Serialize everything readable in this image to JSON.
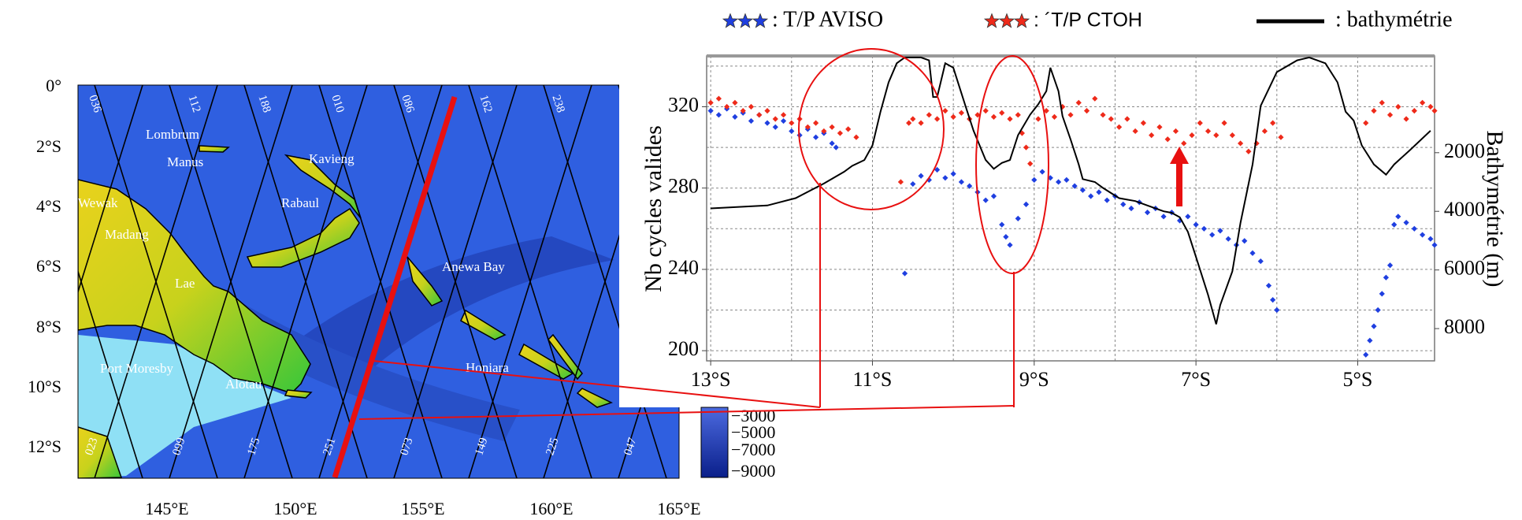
{
  "chart_data": {
    "type": "scatter",
    "xlabel": null,
    "ylabel": "Nb cycles valides",
    "y2label": "Bathymétrie (m)",
    "xlim": [
      -13.05,
      -4.05
    ],
    "xticks": [
      {
        "value": -13,
        "label": "13°S"
      },
      {
        "value": -11,
        "label": "11°S"
      },
      {
        "value": -9,
        "label": "9°S"
      },
      {
        "value": -7,
        "label": "7°S"
      },
      {
        "value": -5,
        "label": "5°S"
      }
    ],
    "x_minor_grid": [
      -12,
      -10,
      -8,
      -6
    ],
    "ylim": [
      195,
      345
    ],
    "yticks": [
      200,
      240,
      280,
      320
    ],
    "y_minor_grid": [
      220,
      260,
      300,
      340
    ],
    "y2lim": [
      9100,
      -1300
    ],
    "y2ticks": [
      2000,
      4000,
      6000,
      8000
    ],
    "grid": true,
    "series": [
      {
        "name": ": T/P AVISO",
        "color": "#1f3fe0",
        "x": [
          -13.0,
          -12.9,
          -12.8,
          -12.7,
          -12.6,
          -12.5,
          -12.4,
          -12.3,
          -12.2,
          -12.1,
          -12.0,
          -11.9,
          -11.8,
          -11.7,
          -11.6,
          -11.5,
          -11.45,
          -10.6,
          -10.5,
          -10.4,
          -10.3,
          -10.2,
          -10.1,
          -10.0,
          -9.9,
          -9.8,
          -9.7,
          -9.6,
          -9.5,
          -9.4,
          -9.35,
          -9.3,
          -9.2,
          -9.1,
          -9.0,
          -8.9,
          -8.8,
          -8.7,
          -8.6,
          -8.5,
          -8.4,
          -8.3,
          -8.2,
          -8.1,
          -8.0,
          -7.9,
          -7.8,
          -7.7,
          -7.6,
          -7.5,
          -7.4,
          -7.3,
          -7.2,
          -7.1,
          -7.0,
          -6.9,
          -6.8,
          -6.7,
          -6.6,
          -6.5,
          -6.4,
          -6.3,
          -6.2,
          -6.1,
          -6.05,
          -6.0,
          -4.9,
          -4.85,
          -4.8,
          -4.75,
          -4.7,
          -4.65,
          -4.6,
          -4.55,
          -4.5,
          -4.4,
          -4.3,
          -4.2,
          -4.1,
          -4.05
        ],
        "values": [
          318,
          316,
          319,
          315,
          317,
          313,
          316,
          312,
          310,
          313,
          308,
          306,
          309,
          305,
          307,
          302,
          300,
          238,
          282,
          286,
          284,
          289,
          285,
          287,
          283,
          281,
          278,
          274,
          276,
          262,
          256,
          252,
          265,
          272,
          284,
          288,
          285,
          283,
          284,
          281,
          279,
          276,
          278,
          274,
          276,
          272,
          270,
          273,
          268,
          270,
          266,
          268,
          264,
          266,
          262,
          260,
          257,
          259,
          255,
          252,
          254,
          248,
          244,
          232,
          225,
          220,
          198,
          205,
          212,
          220,
          228,
          236,
          242,
          262,
          266,
          263,
          260,
          257,
          255,
          252
        ]
      },
      {
        "name": ": ´T/P CTOH",
        "color": "#ee2a1a",
        "x": [
          -13.0,
          -12.9,
          -12.8,
          -12.7,
          -12.6,
          -12.5,
          -12.4,
          -12.3,
          -12.2,
          -12.1,
          -12.0,
          -11.9,
          -11.8,
          -11.7,
          -11.6,
          -11.5,
          -11.4,
          -11.3,
          -11.2,
          -10.65,
          -10.55,
          -10.5,
          -10.4,
          -10.3,
          -10.2,
          -10.1,
          -10.0,
          -9.9,
          -9.8,
          -9.7,
          -9.6,
          -9.5,
          -9.4,
          -9.3,
          -9.2,
          -9.15,
          -9.1,
          -9.05,
          -8.95,
          -8.85,
          -8.75,
          -8.65,
          -8.55,
          -8.45,
          -8.35,
          -8.25,
          -8.15,
          -8.05,
          -7.95,
          -7.85,
          -7.75,
          -7.65,
          -7.55,
          -7.45,
          -7.35,
          -7.25,
          -7.15,
          -7.05,
          -6.95,
          -6.85,
          -6.75,
          -6.65,
          -6.55,
          -6.45,
          -6.35,
          -6.25,
          -6.15,
          -6.05,
          -5.95,
          -4.9,
          -4.8,
          -4.7,
          -4.6,
          -4.5,
          -4.4,
          -4.3,
          -4.2,
          -4.1,
          -4.05
        ],
        "values": [
          322,
          324,
          320,
          322,
          318,
          320,
          316,
          318,
          314,
          316,
          312,
          314,
          310,
          312,
          308,
          310,
          307,
          309,
          305,
          283,
          312,
          314,
          312,
          316,
          314,
          318,
          315,
          317,
          314,
          316,
          318,
          315,
          317,
          314,
          316,
          307,
          300,
          292,
          314,
          318,
          315,
          320,
          316,
          322,
          318,
          324,
          316,
          314,
          310,
          314,
          308,
          312,
          306,
          310,
          304,
          308,
          302,
          306,
          312,
          308,
          306,
          312,
          306,
          302,
          298,
          302,
          308,
          312,
          305,
          312,
          318,
          322,
          316,
          320,
          314,
          318,
          322,
          320,
          318
        ]
      },
      {
        "name": ": bathymétrie",
        "color": "#000000",
        "type": "line",
        "axis": "y2",
        "x": [
          -13.0,
          -12.3,
          -11.95,
          -11.6,
          -11.35,
          -11.25,
          -11.1,
          -11.0,
          -10.9,
          -10.8,
          -10.7,
          -10.6,
          -10.4,
          -10.3,
          -10.25,
          -10.2,
          -10.1,
          -10.0,
          -9.85,
          -9.75,
          -9.6,
          -9.5,
          -9.4,
          -9.3,
          -9.2,
          -9.05,
          -8.95,
          -8.85,
          -8.8,
          -8.7,
          -8.65,
          -8.55,
          -8.45,
          -8.4,
          -8.25,
          -8.15,
          -7.95,
          -7.75,
          -7.6,
          -7.4,
          -7.3,
          -7.2,
          -7.1,
          -7.0,
          -6.85,
          -6.75,
          -6.7,
          -6.55,
          -6.45,
          -6.3,
          -6.2,
          -6.0,
          -5.75,
          -5.6,
          -5.4,
          -5.25,
          -5.15,
          -5.05,
          -4.95,
          -4.8,
          -4.65,
          -4.55,
          -4.35,
          -4.1
        ],
        "values": [
          3900,
          3800,
          3550,
          3050,
          2650,
          2450,
          2250,
          1750,
          600,
          -400,
          -1050,
          -1250,
          -1250,
          -1150,
          100,
          100,
          -1050,
          -900,
          400,
          1250,
          2250,
          2550,
          2350,
          2250,
          1400,
          700,
          350,
          -100,
          -900,
          -100,
          750,
          1550,
          2400,
          2900,
          3000,
          3200,
          3550,
          3650,
          3800,
          4000,
          4050,
          4200,
          4700,
          5550,
          6850,
          7850,
          7200,
          6050,
          4400,
          2400,
          400,
          -750,
          -1150,
          -1250,
          -1050,
          -400,
          600,
          900,
          1750,
          2400,
          2750,
          2400,
          1900,
          1250
        ]
      }
    ]
  },
  "map": {
    "lat_labels": [
      "0°",
      "2°S",
      "4°S",
      "6°S",
      "8°S",
      "10°S",
      "12°S"
    ],
    "lon_labels": [
      "145°E",
      "150°E",
      "155°E",
      "160°E",
      "165°E"
    ],
    "track_labels_top": [
      "036",
      "112",
      "188",
      "010",
      "086",
      "162",
      "238"
    ],
    "track_labels_bottom": [
      "023",
      "099",
      "175",
      "251",
      "073",
      "149",
      "225",
      "047"
    ],
    "places": [
      "Lombrum",
      "Manus",
      "Kavieng",
      "Rabaul",
      "Wewak",
      "Madang",
      "Lae",
      "Anewa Bay",
      "Port Moresby",
      "Alotau",
      "Honiara"
    ],
    "colorbar_labels": [
      "−3000",
      "−5000",
      "−7000",
      "−9000"
    ]
  }
}
